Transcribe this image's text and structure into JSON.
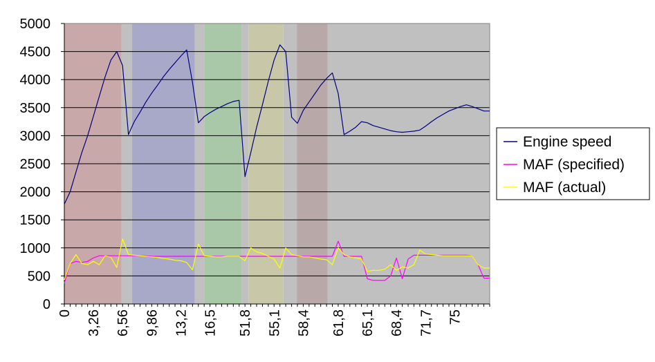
{
  "chart_data": {
    "type": "line",
    "title": "",
    "xlabel": "",
    "ylabel": "",
    "ylim": [
      0,
      5000
    ],
    "y_ticks": [
      0,
      500,
      1000,
      1500,
      2000,
      2500,
      3000,
      3500,
      4000,
      4500,
      5000
    ],
    "x_count": 74,
    "x_tick_labels": [
      {
        "index": 0,
        "label": "0"
      },
      {
        "index": 5,
        "label": "3,26"
      },
      {
        "index": 10,
        "label": "6,56"
      },
      {
        "index": 15,
        "label": "9,86"
      },
      {
        "index": 20,
        "label": "13,2"
      },
      {
        "index": 25,
        "label": "16,5"
      },
      {
        "index": 31,
        "label": "51,8"
      },
      {
        "index": 36,
        "label": "55,1"
      },
      {
        "index": 41,
        "label": "58,4"
      },
      {
        "index": 47,
        "label": "61,8"
      },
      {
        "index": 52,
        "label": "65,1"
      },
      {
        "index": 57,
        "label": "68,4"
      },
      {
        "index": 62,
        "label": "71,7"
      },
      {
        "index": 67,
        "label": "75"
      }
    ],
    "grid": true,
    "legend_position": "right",
    "bands": [
      {
        "start": 0,
        "end": 9.8,
        "color": "#c8a8a8"
      },
      {
        "start": 9.8,
        "end": 11.6,
        "color": "#c0c0c0"
      },
      {
        "start": 11.6,
        "end": 22.4,
        "color": "#a8a8c8"
      },
      {
        "start": 22.4,
        "end": 24.0,
        "color": "#c0c0c0"
      },
      {
        "start": 24.0,
        "end": 30.4,
        "color": "#a8c8a8"
      },
      {
        "start": 30.4,
        "end": 31.6,
        "color": "#c0c0c0"
      },
      {
        "start": 31.6,
        "end": 37.6,
        "color": "#c8c8a8"
      },
      {
        "start": 37.6,
        "end": 39.9,
        "color": "#c0c0c0"
      },
      {
        "start": 39.9,
        "end": 45.2,
        "color": "#b8a8a8"
      },
      {
        "start": 45.2,
        "end": 74,
        "color": "#c0c0c0"
      }
    ],
    "series": [
      {
        "name": "Engine speed",
        "color": "#000080",
        "values": [
          1780,
          2000,
          2350,
          2700,
          3000,
          3350,
          3700,
          4050,
          4350,
          4500,
          4250,
          3020,
          3250,
          3420,
          3600,
          3760,
          3900,
          4050,
          4180,
          4300,
          4420,
          4530,
          3950,
          3230,
          3340,
          3410,
          3470,
          3520,
          3570,
          3610,
          3630,
          2270,
          2700,
          3150,
          3550,
          3970,
          4350,
          4620,
          4500,
          3330,
          3220,
          3450,
          3600,
          3750,
          3900,
          4020,
          4120,
          3750,
          3020,
          3080,
          3150,
          3250,
          3230,
          3180,
          3150,
          3120,
          3090,
          3070,
          3060,
          3070,
          3080,
          3100,
          3170,
          3250,
          3320,
          3380,
          3440,
          3480,
          3520,
          3550,
          3520,
          3480,
          3440,
          3440
        ]
      },
      {
        "name": "MAF (specified)",
        "color": "#ff00ff",
        "values": [
          370,
          720,
          760,
          740,
          760,
          820,
          860,
          860,
          860,
          860,
          860,
          860,
          860,
          860,
          860,
          850,
          850,
          850,
          850,
          850,
          850,
          850,
          850,
          850,
          850,
          850,
          850,
          850,
          850,
          850,
          850,
          850,
          850,
          850,
          850,
          850,
          850,
          850,
          850,
          850,
          850,
          850,
          850,
          850,
          850,
          850,
          850,
          1120,
          850,
          850,
          850,
          850,
          450,
          420,
          420,
          420,
          500,
          820,
          450,
          800,
          870,
          870,
          870,
          870,
          870,
          870,
          870,
          870,
          870,
          870,
          850,
          700,
          460,
          460
        ]
      },
      {
        "name": "MAF (actual)",
        "color": "#ffff00",
        "values": [
          430,
          720,
          880,
          720,
          700,
          760,
          700,
          860,
          830,
          650,
          1160,
          880,
          870,
          860,
          850,
          840,
          830,
          810,
          800,
          780,
          770,
          740,
          610,
          1070,
          860,
          850,
          840,
          840,
          850,
          850,
          850,
          770,
          1000,
          930,
          900,
          850,
          800,
          640,
          1000,
          880,
          860,
          840,
          840,
          820,
          800,
          790,
          700,
          1000,
          880,
          840,
          820,
          800,
          580,
          600,
          600,
          620,
          700,
          600,
          660,
          640,
          700,
          960,
          890,
          880,
          870,
          860,
          860,
          860,
          860,
          860,
          850,
          700,
          640,
          640
        ]
      }
    ]
  }
}
